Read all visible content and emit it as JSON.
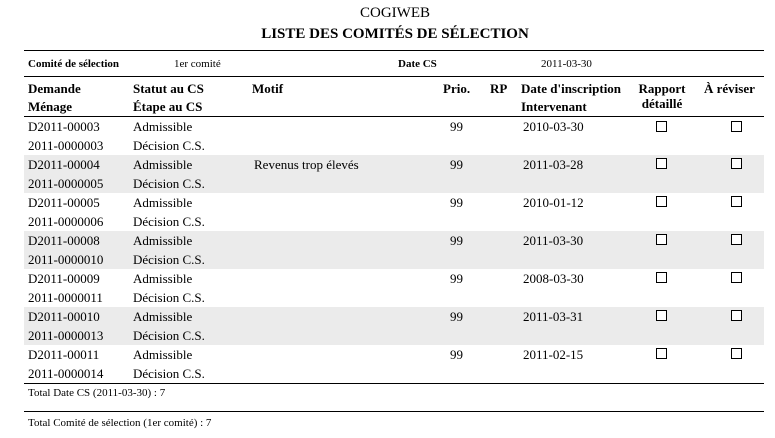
{
  "header": {
    "app_title": "COGIWEB",
    "report_title": "LISTE DES COMITÉS DE SÉLECTION"
  },
  "filters": {
    "comite_label": "Comité de sélection",
    "comite_value": "1er comité",
    "date_label": "Date CS",
    "date_value": "2011-03-30"
  },
  "columns": {
    "demande": "Demande",
    "menage": "Ménage",
    "statut": "Statut au CS",
    "etape": "Étape au CS",
    "motif": "Motif",
    "prio": "Prio.",
    "rp": "RP",
    "date_inscription": "Date d'inscription",
    "intervenant": "Intervenant",
    "rapport_line1": "Rapport",
    "rapport_line2": "détaillé",
    "a_reviser": "À réviser"
  },
  "rows": [
    {
      "demande": "D2011-00003",
      "menage": "2011-0000003",
      "statut": "Admissible",
      "etape": "Décision C.S.",
      "motif": "",
      "prio": "99",
      "rp": "",
      "date": "2010-03-30",
      "intervenant": "",
      "rapport": false,
      "a_reviser": false
    },
    {
      "demande": "D2011-00004",
      "menage": "2011-0000005",
      "statut": "Admissible",
      "etape": "Décision C.S.",
      "motif": "Revenus trop élevés",
      "prio": "99",
      "rp": "",
      "date": "2011-03-28",
      "intervenant": "",
      "rapport": false,
      "a_reviser": false
    },
    {
      "demande": "D2011-00005",
      "menage": "2011-0000006",
      "statut": "Admissible",
      "etape": "Décision C.S.",
      "motif": "",
      "prio": "99",
      "rp": "",
      "date": "2010-01-12",
      "intervenant": "",
      "rapport": false,
      "a_reviser": false
    },
    {
      "demande": "D2011-00008",
      "menage": "2011-0000010",
      "statut": "Admissible",
      "etape": "Décision C.S.",
      "motif": "",
      "prio": "99",
      "rp": "",
      "date": "2011-03-30",
      "intervenant": "",
      "rapport": false,
      "a_reviser": false
    },
    {
      "demande": "D2011-00009",
      "menage": "2011-0000011",
      "statut": "Admissible",
      "etape": "Décision C.S.",
      "motif": "",
      "prio": "99",
      "rp": "",
      "date": "2008-03-30",
      "intervenant": "",
      "rapport": false,
      "a_reviser": false
    },
    {
      "demande": "D2011-00010",
      "menage": "2011-0000013",
      "statut": "Admissible",
      "etape": "Décision C.S.",
      "motif": "",
      "prio": "99",
      "rp": "",
      "date": "2011-03-31",
      "intervenant": "",
      "rapport": false,
      "a_reviser": false
    },
    {
      "demande": "D2011-00011",
      "menage": "2011-0000014",
      "statut": "Admissible",
      "etape": "Décision C.S.",
      "motif": "",
      "prio": "99",
      "rp": "",
      "date": "2011-02-15",
      "intervenant": "",
      "rapport": false,
      "a_reviser": false
    }
  ],
  "totals": {
    "date_total": "Total Date CS (2011-03-30) : 7",
    "comite_total": "Total Comité de sélection (1er comité) : 7"
  }
}
